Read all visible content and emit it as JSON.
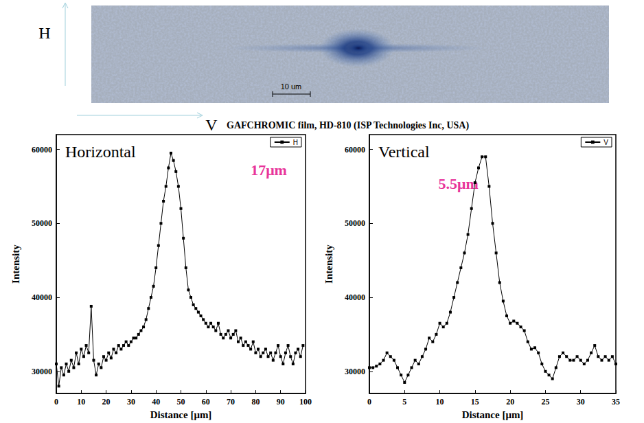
{
  "image": {
    "axis_labels": [
      "H",
      "V"
    ],
    "scale_bar": "10 um",
    "caption": "GAFCHROMIC film, HD-810 (ISP Technologies Inc, USA)"
  },
  "chart_data": [
    {
      "type": "line",
      "title": "Horizontal",
      "annotation": {
        "text": "17μm",
        "color": "#e8359a"
      },
      "x_label": "Distance [μm]",
      "y_label": "Intensity",
      "xlim": [
        0,
        100
      ],
      "xticks": [
        0,
        10,
        20,
        30,
        40,
        50,
        60,
        70,
        80,
        90,
        100
      ],
      "ylim": [
        27000,
        62000
      ],
      "yticks": [
        30000,
        40000,
        50000,
        60000
      ],
      "legend": "upper right",
      "grid": false,
      "x": [
        0,
        1,
        2,
        3,
        4,
        5,
        6,
        7,
        8,
        9,
        10,
        11,
        12,
        13,
        14,
        15,
        16,
        17,
        18,
        19,
        20,
        21,
        22,
        23,
        24,
        25,
        26,
        27,
        28,
        29,
        30,
        31,
        32,
        33,
        34,
        35,
        36,
        37,
        38,
        39,
        40,
        41,
        42,
        43,
        44,
        45,
        46,
        47,
        48,
        49,
        50,
        51,
        52,
        53,
        54,
        55,
        56,
        57,
        58,
        59,
        60,
        61,
        62,
        63,
        64,
        65,
        66,
        67,
        68,
        69,
        70,
        71,
        72,
        73,
        74,
        75,
        76,
        77,
        78,
        79,
        80,
        81,
        82,
        83,
        84,
        85,
        86,
        87,
        88,
        89,
        90,
        91,
        92,
        93,
        94,
        95,
        96,
        97,
        98,
        99
      ],
      "series": [
        {
          "name": "H",
          "color": "#000000",
          "marker": "square",
          "line_style": "solid",
          "values": [
            31000,
            28000,
            30500,
            29500,
            31000,
            30000,
            31500,
            30500,
            32500,
            31000,
            33000,
            32000,
            33500,
            32500,
            38800,
            31500,
            29500,
            31000,
            30500,
            32000,
            31500,
            32500,
            31800,
            33000,
            32500,
            33500,
            33000,
            33500,
            34000,
            33500,
            34000,
            34500,
            34500,
            35000,
            35500,
            36000,
            37000,
            38500,
            40000,
            41500,
            44000,
            47000,
            50000,
            53000,
            55000,
            57500,
            59500,
            58500,
            57000,
            55000,
            52000,
            48000,
            44000,
            41000,
            40000,
            39000,
            38500,
            38000,
            37500,
            37000,
            36500,
            36000,
            36500,
            36000,
            35500,
            36500,
            35000,
            34500,
            35000,
            35500,
            34500,
            35000,
            35500,
            34000,
            34500,
            33500,
            34000,
            33500,
            33000,
            34000,
            32500,
            33000,
            32000,
            32500,
            33000,
            32000,
            32500,
            31500,
            32500,
            33500,
            32000,
            31000,
            32500,
            33500,
            32000,
            31000,
            32500,
            33000,
            32000,
            33500
          ]
        }
      ]
    },
    {
      "type": "line",
      "title": "Vertical",
      "annotation": {
        "text": "5.5μm",
        "color": "#e8359a"
      },
      "x_label": "Distance [μm]",
      "y_label": "Intensity",
      "xlim": [
        0,
        35
      ],
      "xticks": [
        0,
        5,
        10,
        15,
        20,
        25,
        30,
        35
      ],
      "ylim": [
        27000,
        62000
      ],
      "yticks": [
        30000,
        40000,
        50000,
        60000
      ],
      "legend": "upper right",
      "grid": false,
      "x": [
        0,
        0.5,
        1,
        1.5,
        2,
        2.5,
        3,
        3.5,
        4,
        4.5,
        5,
        5.5,
        6,
        6.5,
        7,
        7.5,
        8,
        8.5,
        9,
        9.5,
        10,
        10.5,
        11,
        11.5,
        12,
        12.5,
        13,
        13.5,
        14,
        14.5,
        15,
        15.5,
        16,
        16.5,
        17,
        17.5,
        18,
        18.5,
        19,
        19.5,
        20,
        20.5,
        21,
        21.5,
        22,
        22.5,
        23,
        23.5,
        24,
        24.5,
        25,
        25.5,
        26,
        26.5,
        27,
        27.5,
        28,
        28.5,
        29,
        29.5,
        30,
        30.5,
        31,
        31.5,
        32,
        32.5,
        33,
        33.5,
        34,
        34.5,
        35
      ],
      "series": [
        {
          "name": "V",
          "color": "#000000",
          "marker": "square",
          "line_style": "solid",
          "values": [
            30500,
            30500,
            30700,
            31000,
            31500,
            32500,
            32000,
            31500,
            30500,
            29500,
            28500,
            29500,
            30500,
            31500,
            31000,
            32000,
            33000,
            34500,
            34000,
            35000,
            36500,
            36000,
            36500,
            38000,
            40000,
            42000,
            44000,
            46000,
            48500,
            52000,
            55500,
            57500,
            59000,
            59000,
            55000,
            50000,
            46000,
            42000,
            39500,
            37500,
            36500,
            36800,
            36500,
            36000,
            35500,
            34000,
            33000,
            33200,
            32500,
            31000,
            30000,
            29500,
            29000,
            30500,
            32000,
            32500,
            32000,
            31500,
            31500,
            32000,
            31500,
            31000,
            31500,
            32500,
            33500,
            32000,
            31500,
            32000,
            31500,
            32000,
            31000
          ]
        }
      ]
    }
  ]
}
